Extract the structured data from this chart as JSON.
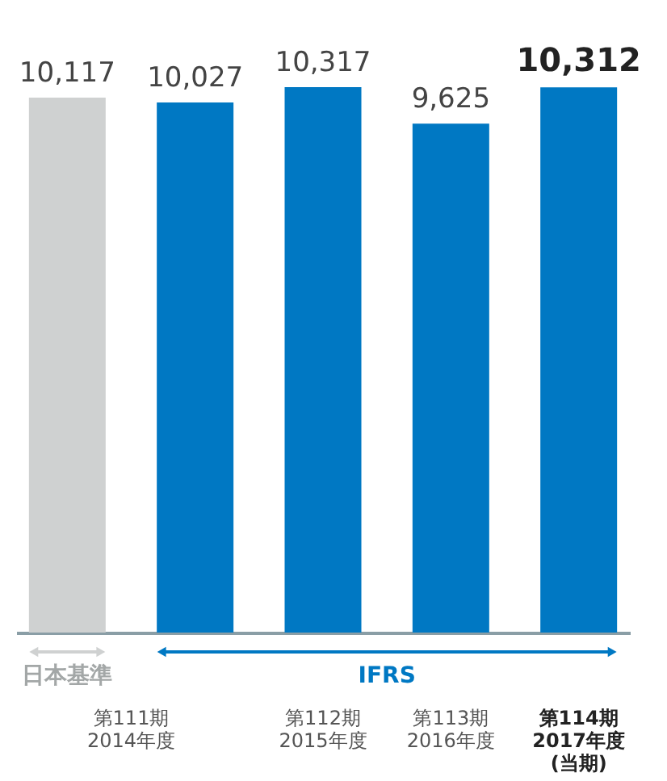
{
  "chart_data": {
    "type": "bar",
    "categories": [
      null,
      "第111期\n2014年度",
      "第112期\n2015年度",
      "第113期\n2016年度",
      "第114期\n2017年度\n(当期)"
    ],
    "values": [
      10117,
      10027,
      10317,
      9625,
      10312
    ],
    "colors": [
      "#cfd1d1",
      "#0078c3",
      "#0078c3",
      "#0078c3",
      "#0078c3"
    ],
    "value_labels": [
      "10,117",
      "10,027",
      "10,317",
      "9,625",
      "10,312"
    ],
    "annotations": [
      "日本基準",
      "IFRS"
    ],
    "grid": false
  }
}
